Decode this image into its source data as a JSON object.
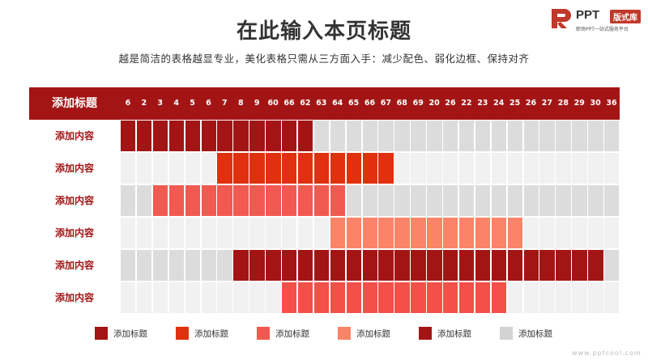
{
  "title": "在此输入本页标题",
  "subtitle": "越是简洁的表格越显专业，美化表格只需从三方面入手：减少配色、弱化边框、保持对齐",
  "logo": {
    "brand": "PPT",
    "badge": "版式库",
    "tagline": "职场PPT一站式服务平台"
  },
  "watermark": "www.pptcool.com",
  "table": {
    "header_label": "添加标题",
    "columns": [
      "6",
      "2",
      "3",
      "4",
      "5",
      "6",
      "7",
      "8",
      "9",
      "60",
      "66",
      "62",
      "63",
      "64",
      "65",
      "66",
      "67",
      "68",
      "69",
      "20",
      "26",
      "22",
      "23",
      "24",
      "25",
      "26",
      "27",
      "28",
      "29",
      "30",
      "36"
    ],
    "rows": [
      {
        "label": "添加内容",
        "start": 0,
        "end": 11,
        "color": "#a31515"
      },
      {
        "label": "添加内容",
        "start": 6,
        "end": 16,
        "color": "#e0300e"
      },
      {
        "label": "添加内容",
        "start": 2,
        "end": 13,
        "color": "#f05a50"
      },
      {
        "label": "添加内容",
        "start": 13,
        "end": 24,
        "color": "#f98467"
      },
      {
        "label": "添加内容",
        "start": 7,
        "end": 29,
        "color": "#a31515"
      },
      {
        "label": "添加内容",
        "start": 10,
        "end": 23,
        "color": "#f25048"
      }
    ],
    "row_colors": [
      "#dcdcdc",
      "#f1f1f1"
    ]
  },
  "legend": [
    {
      "label": "添加标题",
      "color": "#a31515"
    },
    {
      "label": "添加标题",
      "color": "#e0300e"
    },
    {
      "label": "添加标题",
      "color": "#f05a50"
    },
    {
      "label": "添加标题",
      "color": "#f98467"
    },
    {
      "label": "添加标题",
      "color": "#a31515"
    },
    {
      "label": "添加标题",
      "color": "#d3d3d3"
    }
  ]
}
